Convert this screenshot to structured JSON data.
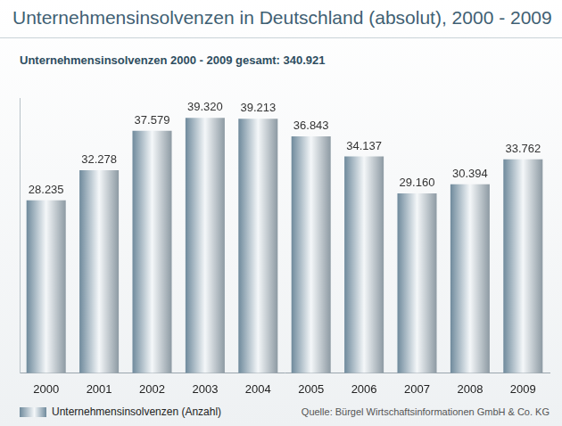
{
  "chart_data": {
    "type": "bar",
    "title": "Unternehmensinsolvenzen in Deutschland (absolut), 2000 - 2009",
    "subtitle": "Unternehmensinsolvenzen 2000 - 2009 gesamt: 340.921",
    "annotations": [
      "Quelle: Bürgel Wirtschaftsinformationen GmbH & Co. KG"
    ],
    "categories": [
      "2000",
      "2001",
      "2002",
      "2003",
      "2004",
      "2005",
      "2006",
      "2007",
      "2008",
      "2009"
    ],
    "series": [
      {
        "name": "Unternehmensinsolvenzen (Anzahl)",
        "color": "#6f8a9c",
        "values": [
          28235,
          32278,
          37579,
          39320,
          39213,
          36843,
          34137,
          29160,
          30394,
          33762
        ],
        "value_labels": [
          "28.235",
          "32.278",
          "37.579",
          "39.320",
          "39.213",
          "36.843",
          "34.137",
          "29.160",
          "30.394",
          "33.762"
        ]
      }
    ],
    "ylim": [
      5000,
      42000
    ],
    "grid": false,
    "legend": "bottom-left",
    "data_labels": true,
    "tick_labels": "x"
  }
}
